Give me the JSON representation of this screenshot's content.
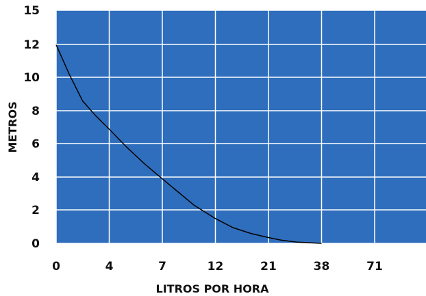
{
  "chart_data": {
    "type": "line",
    "xlabel": "LITROS POR HORA",
    "ylabel": "METROS",
    "x_tick_labels": [
      "0",
      "4",
      "7",
      "12",
      "21",
      "38",
      "71"
    ],
    "y_tick_labels": [
      "0",
      "2",
      "4",
      "6",
      "8",
      "10",
      "12",
      "15"
    ],
    "x_tick_values": [
      0,
      4,
      7,
      12,
      21,
      38,
      71
    ],
    "y_tick_values": [
      0,
      2,
      4,
      6,
      8,
      10,
      12,
      15
    ],
    "series": [
      {
        "x": [
          0,
          1,
          2,
          3,
          4,
          5,
          6,
          7,
          8.5,
          10,
          12,
          15,
          18,
          21,
          25,
          30,
          38
        ],
        "values": [
          12,
          10.2,
          8.6,
          7.7,
          6.9,
          5.8,
          4.8,
          3.9,
          3.1,
          2.3,
          1.5,
          0.95,
          0.6,
          0.35,
          0.2,
          0.08,
          0
        ]
      }
    ],
    "grid": true,
    "colors": {
      "plot_background": "#2f6ebc",
      "grid": "#ffffff",
      "line": "#000000"
    }
  }
}
